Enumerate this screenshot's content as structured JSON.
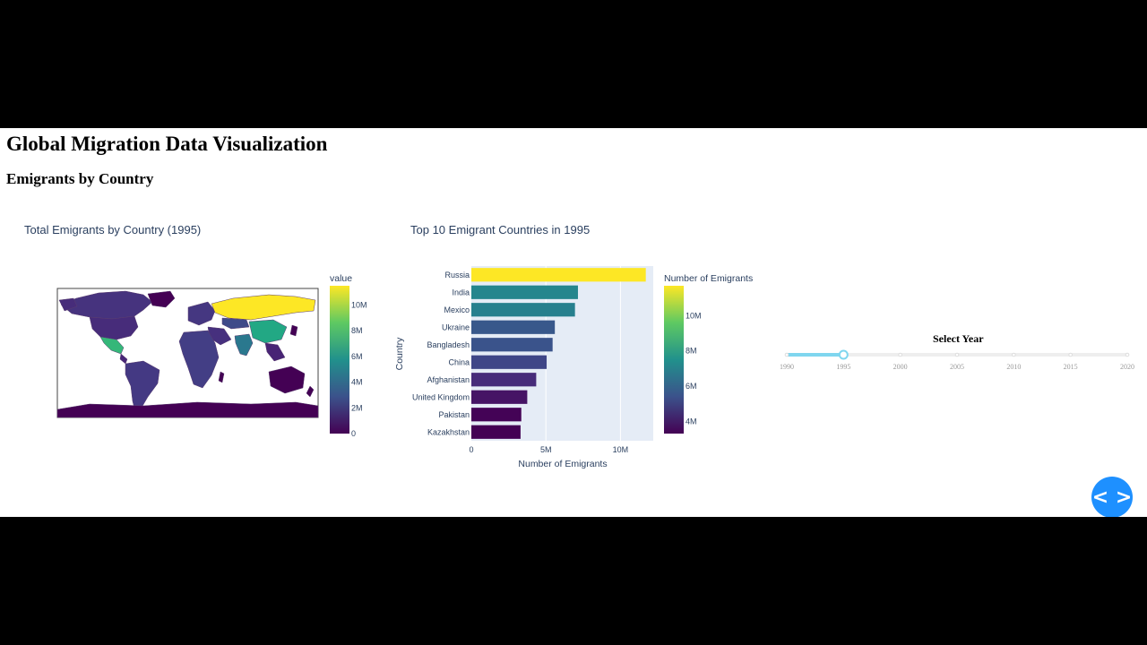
{
  "header": {
    "title": "Global Migration Data Visualization",
    "subtitle": "Emigrants by Country"
  },
  "map": {
    "title": "Total Emigrants by Country (1995)",
    "colorbar_title": "value",
    "colorbar_ticks": [
      "10M",
      "8M",
      "6M",
      "4M",
      "2M",
      "0"
    ]
  },
  "bar": {
    "title": "Top 10 Emigrant Countries in 1995",
    "colorbar_title": "Number of Emigrants",
    "colorbar_ticks": [
      "10M",
      "8M",
      "6M",
      "4M"
    ]
  },
  "slider": {
    "title": "Select Year",
    "years": [
      "1990",
      "1995",
      "2000",
      "2005",
      "2010",
      "2015",
      "2020"
    ],
    "selected": "1995",
    "accent_color": "#7fd6ef"
  },
  "nav_button": {
    "icon": "code-chevrons-icon",
    "label": "< >"
  },
  "chart_data": [
    {
      "type": "map",
      "title": "Total Emigrants by Country (1995)",
      "colorscale": "viridis",
      "color_range": [
        0,
        11500000
      ],
      "colorbar_title": "value",
      "highlighted_regions": [
        {
          "region": "Russia",
          "level": "max"
        },
        {
          "region": "Kazakhstan",
          "level": "low"
        },
        {
          "region": "Mexico",
          "level": "high"
        },
        {
          "region": "India",
          "level": "high"
        },
        {
          "region": "China",
          "level": "medium-high"
        }
      ]
    },
    {
      "type": "bar",
      "orientation": "horizontal",
      "title": "Top 10 Emigrant Countries in 1995",
      "xlabel": "Number of Emigrants",
      "ylabel": "Country",
      "categories": [
        "Russia",
        "India",
        "Mexico",
        "Ukraine",
        "Bangladesh",
        "China",
        "Afghanistan",
        "United Kingdom",
        "Pakistan",
        "Kazakhstan"
      ],
      "values": [
        11700000,
        7150000,
        6950000,
        5600000,
        5450000,
        5050000,
        4350000,
        3750000,
        3350000,
        3300000
      ],
      "xticks": [
        "0",
        "5M",
        "10M"
      ],
      "xlim": [
        0,
        12200000
      ],
      "color_range": [
        3300000,
        11700000
      ],
      "colorscale": "viridis",
      "colorbar_title": "Number of Emigrants",
      "background": "#e5ecf6"
    }
  ]
}
